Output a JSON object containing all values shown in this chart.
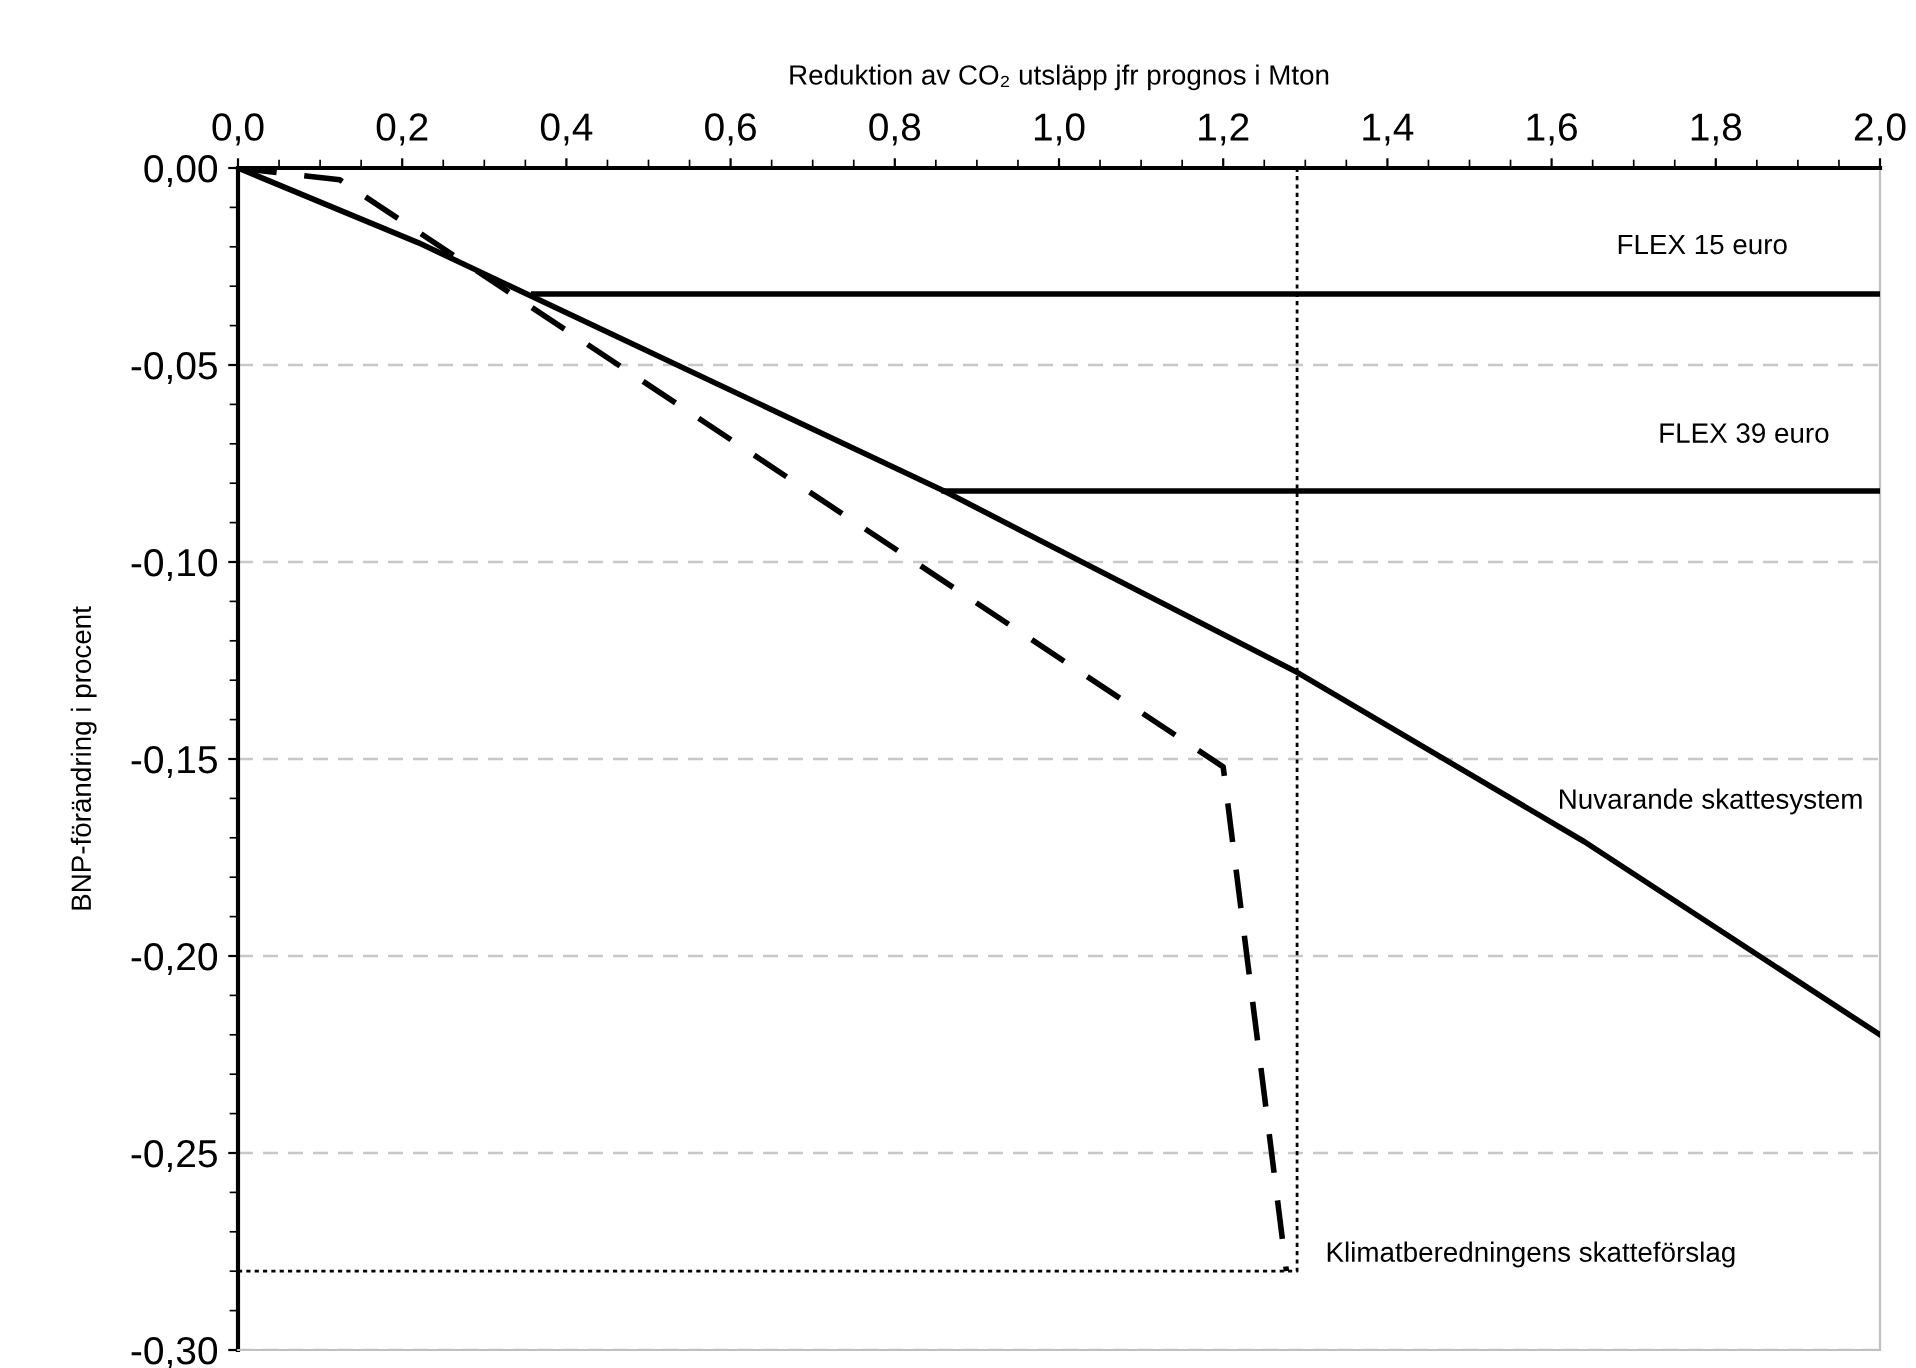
{
  "chart_data": {
    "type": "line",
    "xlabel": "Reduktion av CO₂ utsläpp jfr prognos i Mton",
    "ylabel": "BNP-förändring i procent",
    "series": [
      {
        "name": "Nuvarande skattesystem",
        "color": "#000000",
        "line_style": "solid",
        "x": [
          0,
          0.22,
          0.86,
          1.29,
          1.64,
          2.0
        ],
        "values": [
          0,
          -0.019,
          -0.082,
          -0.128,
          -0.171,
          -0.22
        ]
      },
      {
        "name": "FLEX 15 euro",
        "color": "#000000",
        "line_style": "solid",
        "x": [
          0.36,
          2.0
        ],
        "values": [
          -0.032,
          -0.032
        ]
      },
      {
        "name": "FLEX 39 euro",
        "color": "#000000",
        "line_style": "solid",
        "x": [
          0.86,
          2.0
        ],
        "values": [
          -0.082,
          -0.082
        ]
      },
      {
        "name": "Klimatberedningens skatteförslag",
        "color": "#000000",
        "line_style": "dashed",
        "x": [
          0,
          0.124,
          1.2,
          1.277
        ],
        "values": [
          0,
          -0.003,
          -0.152,
          -0.28
        ]
      },
      {
        "color": "#000000",
        "line_style": "dotted",
        "x": [
          0,
          1.29,
          1.29
        ],
        "values": [
          -0.28,
          -0.28,
          0
        ]
      }
    ],
    "xlim": [
      0,
      2.0
    ],
    "ylim": [
      -0.3,
      0
    ],
    "xticks": [
      {
        "value": 0,
        "label": "0,0"
      },
      {
        "value": 0.2,
        "label": "0,2"
      },
      {
        "value": 0.4,
        "label": "0,4"
      },
      {
        "value": 0.6,
        "label": "0,6"
      },
      {
        "value": 0.8,
        "label": "0,8"
      },
      {
        "value": 1.0,
        "label": "1,0"
      },
      {
        "value": 1.2,
        "label": "1,2"
      },
      {
        "value": 1.4,
        "label": "1,4"
      },
      {
        "value": 1.6,
        "label": "1,6"
      },
      {
        "value": 1.8,
        "label": "1,8"
      },
      {
        "value": 2.0,
        "label": "2,0"
      }
    ],
    "yticks": [
      {
        "value": 0,
        "label": "0,00"
      },
      {
        "value": -0.05,
        "label": "-0,05"
      },
      {
        "value": -0.1,
        "label": "-0,10"
      },
      {
        "value": -0.15,
        "label": "-0,15"
      },
      {
        "value": -0.2,
        "label": "-0,20"
      },
      {
        "value": -0.25,
        "label": "-0,25"
      },
      {
        "value": -0.3,
        "label": "-0,30"
      }
    ],
    "grid": "y",
    "legend": false,
    "marker": "none"
  }
}
